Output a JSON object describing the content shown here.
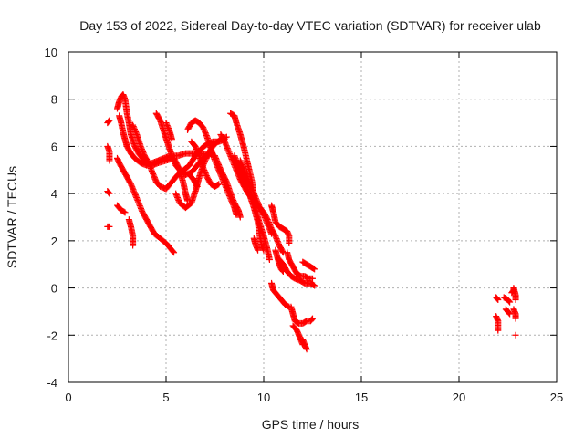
{
  "chart_data": {
    "type": "scatter",
    "title": "Day 153 of 2022, Sidereal Day-to-day VTEC variation (SDTVAR) for receiver ulab",
    "xlabel": "GPS time / hours",
    "ylabel": "SDTVAR / TECUs",
    "xlim": [
      0,
      25
    ],
    "ylim": [
      -4,
      10
    ],
    "xticks": [
      "0",
      "5",
      "10",
      "15",
      "20",
      "25"
    ],
    "yticks": [
      "-4",
      "-2",
      "0",
      "2",
      "4",
      "6",
      "8",
      "10"
    ],
    "grid": true,
    "marker": "+",
    "color": "#ff0000",
    "series": [
      {
        "name": "SDTVAR",
        "segments": [
          [
            [
              2.0,
              7.0
            ],
            [
              2.1,
              7.1
            ]
          ],
          [
            [
              2.0,
              6.0
            ],
            [
              2.1,
              5.8
            ],
            [
              2.1,
              5.4
            ]
          ],
          [
            [
              2.0,
              4.1
            ],
            [
              2.1,
              4.0
            ]
          ],
          [
            [
              2.0,
              2.6
            ],
            [
              2.1,
              2.6
            ]
          ],
          [
            [
              2.5,
              7.6
            ],
            [
              2.6,
              7.9
            ],
            [
              2.7,
              8.1
            ],
            [
              2.8,
              8.2
            ],
            [
              2.9,
              8.0
            ],
            [
              3.0,
              7.4
            ],
            [
              3.1,
              7.0
            ],
            [
              3.2,
              6.5
            ],
            [
              3.4,
              6.0
            ],
            [
              3.6,
              5.7
            ],
            [
              3.8,
              5.5
            ],
            [
              4.0,
              5.3
            ],
            [
              4.3,
              5.2
            ],
            [
              4.6,
              5.3
            ],
            [
              5.0,
              5.4
            ],
            [
              5.4,
              5.5
            ],
            [
              5.7,
              5.0
            ],
            [
              5.9,
              4.4
            ],
            [
              6.0,
              4.0
            ],
            [
              6.1,
              3.7
            ]
          ],
          [
            [
              2.6,
              7.3
            ],
            [
              2.7,
              7.0
            ],
            [
              2.8,
              6.6
            ],
            [
              2.9,
              6.3
            ],
            [
              3.0,
              6.0
            ],
            [
              3.2,
              5.7
            ],
            [
              3.4,
              5.5
            ],
            [
              3.7,
              5.3
            ],
            [
              4.0,
              5.2
            ],
            [
              4.3,
              5.3
            ],
            [
              4.6,
              5.4
            ],
            [
              4.9,
              5.5
            ],
            [
              5.2,
              5.6
            ],
            [
              5.6,
              5.6
            ],
            [
              6.0,
              5.7
            ],
            [
              6.4,
              5.7
            ],
            [
              6.8,
              5.7
            ],
            [
              7.2,
              5.6
            ]
          ],
          [
            [
              2.5,
              5.5
            ],
            [
              2.6,
              5.3
            ],
            [
              2.8,
              5.0
            ],
            [
              3.0,
              4.7
            ],
            [
              3.2,
              4.4
            ],
            [
              3.4,
              4.0
            ],
            [
              3.6,
              3.6
            ],
            [
              3.8,
              3.2
            ],
            [
              4.0,
              2.9
            ],
            [
              4.2,
              2.6
            ],
            [
              4.4,
              2.3
            ],
            [
              4.7,
              2.1
            ],
            [
              5.0,
              1.9
            ],
            [
              5.2,
              1.7
            ],
            [
              5.4,
              1.5
            ]
          ],
          [
            [
              2.5,
              3.5
            ],
            [
              2.7,
              3.3
            ],
            [
              2.9,
              3.2
            ]
          ],
          [
            [
              3.1,
              2.9
            ],
            [
              3.2,
              2.6
            ],
            [
              3.3,
              2.2
            ],
            [
              3.3,
              1.8
            ]
          ],
          [
            [
              3.3,
              6.9
            ],
            [
              3.5,
              6.5
            ],
            [
              3.7,
              6.0
            ],
            [
              3.9,
              5.6
            ],
            [
              4.1,
              5.3
            ],
            [
              4.3,
              4.9
            ],
            [
              4.5,
              4.5
            ],
            [
              4.7,
              4.3
            ],
            [
              5.0,
              4.2
            ],
            [
              5.3,
              4.5
            ],
            [
              5.6,
              4.8
            ],
            [
              5.9,
              5.0
            ],
            [
              6.2,
              5.2
            ],
            [
              6.5,
              5.6
            ],
            [
              6.8,
              5.9
            ],
            [
              7.1,
              6.1
            ],
            [
              7.4,
              6.2
            ],
            [
              7.7,
              6.2
            ],
            [
              8.0,
              6.3
            ]
          ],
          [
            [
              4.5,
              7.4
            ],
            [
              4.7,
              7.1
            ],
            [
              4.9,
              6.6
            ],
            [
              5.1,
              6.1
            ],
            [
              5.3,
              5.6
            ],
            [
              5.5,
              5.2
            ],
            [
              5.7,
              5.0
            ],
            [
              6.0,
              4.8
            ],
            [
              6.3,
              4.9
            ],
            [
              6.6,
              5.2
            ],
            [
              6.9,
              5.5
            ],
            [
              7.2,
              5.7
            ],
            [
              7.5,
              5.6
            ],
            [
              7.8,
              5.0
            ],
            [
              8.1,
              4.5
            ],
            [
              8.3,
              4.0
            ],
            [
              8.5,
              3.6
            ],
            [
              8.7,
              3.3
            ],
            [
              8.8,
              3.0
            ]
          ],
          [
            [
              5.0,
              7.0
            ],
            [
              5.2,
              6.6
            ],
            [
              5.3,
              6.3
            ]
          ],
          [
            [
              5.5,
              4.0
            ],
            [
              5.7,
              3.6
            ],
            [
              6.0,
              3.4
            ],
            [
              6.3,
              3.6
            ],
            [
              6.5,
              4.1
            ],
            [
              6.7,
              4.7
            ],
            [
              6.9,
              5.2
            ],
            [
              7.1,
              5.6
            ],
            [
              7.3,
              5.9
            ],
            [
              7.5,
              6.1
            ],
            [
              7.8,
              6.3
            ],
            [
              8.1,
              6.4
            ]
          ],
          [
            [
              6.1,
              6.7
            ],
            [
              6.3,
              7.0
            ],
            [
              6.5,
              7.1
            ],
            [
              6.7,
              7.0
            ],
            [
              6.9,
              6.8
            ],
            [
              7.1,
              6.4
            ],
            [
              7.3,
              5.9
            ],
            [
              7.5,
              5.4
            ],
            [
              7.7,
              5.0
            ],
            [
              7.9,
              4.6
            ],
            [
              8.1,
              4.2
            ],
            [
              8.3,
              3.8
            ],
            [
              8.5,
              3.4
            ],
            [
              8.6,
              3.1
            ]
          ],
          [
            [
              6.3,
              6.2
            ],
            [
              6.5,
              6.0
            ],
            [
              6.7,
              5.6
            ],
            [
              6.9,
              5.1
            ],
            [
              7.1,
              4.7
            ],
            [
              7.3,
              4.4
            ],
            [
              7.5,
              4.3
            ],
            [
              7.7,
              4.4
            ]
          ],
          [
            [
              6.2,
              4.8
            ],
            [
              6.4,
              4.6
            ],
            [
              6.6,
              4.3
            ]
          ],
          [
            [
              8.3,
              7.4
            ],
            [
              8.5,
              7.3
            ],
            [
              8.6,
              7.0
            ],
            [
              8.8,
              6.5
            ],
            [
              9.0,
              5.9
            ],
            [
              9.2,
              5.2
            ],
            [
              9.4,
              4.5
            ],
            [
              9.5,
              3.9
            ],
            [
              9.6,
              3.3
            ],
            [
              9.8,
              2.7
            ],
            [
              10.0,
              2.2
            ],
            [
              10.2,
              1.6
            ],
            [
              10.3,
              1.2
            ]
          ],
          [
            [
              7.8,
              6.5
            ],
            [
              8.0,
              6.2
            ],
            [
              8.2,
              5.8
            ],
            [
              8.4,
              5.4
            ],
            [
              8.6,
              5.0
            ],
            [
              8.8,
              4.6
            ],
            [
              9.0,
              4.3
            ],
            [
              9.2,
              4.0
            ],
            [
              9.4,
              3.8
            ],
            [
              9.6,
              3.6
            ],
            [
              9.8,
              3.4
            ],
            [
              10.0,
              3.1
            ],
            [
              10.2,
              2.7
            ],
            [
              10.4,
              2.3
            ]
          ],
          [
            [
              8.5,
              5.6
            ],
            [
              8.7,
              5.2
            ],
            [
              8.9,
              4.8
            ],
            [
              9.1,
              4.4
            ],
            [
              9.3,
              3.9
            ],
            [
              9.5,
              3.4
            ],
            [
              9.7,
              2.8
            ],
            [
              9.8,
              2.2
            ],
            [
              9.9,
              1.8
            ],
            [
              10.0,
              1.6
            ]
          ],
          [
            [
              8.8,
              5.4
            ],
            [
              9.0,
              5.0
            ],
            [
              9.2,
              4.6
            ],
            [
              9.4,
              4.2
            ],
            [
              9.6,
              3.8
            ],
            [
              9.8,
              3.4
            ],
            [
              10.0,
              3.2
            ],
            [
              10.2,
              2.9
            ],
            [
              10.4,
              2.5
            ],
            [
              10.6,
              2.2
            ],
            [
              10.8,
              1.8
            ],
            [
              11.0,
              1.5
            ]
          ],
          [
            [
              9.5,
              2.1
            ],
            [
              9.6,
              1.8
            ],
            [
              9.7,
              1.6
            ]
          ],
          [
            [
              10.4,
              3.5
            ],
            [
              10.5,
              3.2
            ],
            [
              10.6,
              2.8
            ],
            [
              10.8,
              2.6
            ],
            [
              11.0,
              2.5
            ],
            [
              11.2,
              2.4
            ],
            [
              11.3,
              2.2
            ],
            [
              11.3,
              1.9
            ]
          ],
          [
            [
              10.6,
              1.6
            ],
            [
              10.7,
              1.3
            ],
            [
              10.8,
              1.0
            ],
            [
              10.9,
              0.8
            ],
            [
              11.0,
              0.7
            ]
          ],
          [
            [
              10.7,
              1.3
            ],
            [
              11.0,
              1.0
            ],
            [
              11.2,
              0.7
            ],
            [
              11.4,
              0.5
            ],
            [
              11.6,
              0.4
            ],
            [
              11.9,
              0.3
            ],
            [
              12.1,
              0.2
            ],
            [
              12.4,
              0.2
            ],
            [
              12.6,
              0.1
            ]
          ],
          [
            [
              11.2,
              1.5
            ],
            [
              11.3,
              1.2
            ],
            [
              11.5,
              0.9
            ],
            [
              11.7,
              0.6
            ],
            [
              11.9,
              0.5
            ],
            [
              12.1,
              0.5
            ],
            [
              12.3,
              0.4
            ],
            [
              12.5,
              0.4
            ]
          ],
          [
            [
              12.0,
              1.1
            ],
            [
              12.2,
              1.0
            ],
            [
              12.4,
              0.9
            ],
            [
              12.6,
              0.8
            ]
          ],
          [
            [
              10.4,
              0.2
            ],
            [
              10.5,
              -0.1
            ],
            [
              10.7,
              -0.3
            ],
            [
              10.9,
              -0.5
            ],
            [
              11.1,
              -0.7
            ],
            [
              11.3,
              -0.8
            ]
          ],
          [
            [
              11.4,
              -0.8
            ],
            [
              11.5,
              -1.1
            ],
            [
              11.6,
              -1.4
            ],
            [
              11.8,
              -1.5
            ],
            [
              12.0,
              -1.5
            ],
            [
              12.2,
              -1.4
            ],
            [
              12.4,
              -1.4
            ],
            [
              12.5,
              -1.3
            ]
          ],
          [
            [
              11.5,
              -1.6
            ],
            [
              11.7,
              -1.8
            ],
            [
              11.8,
              -2.0
            ],
            [
              11.9,
              -2.2
            ],
            [
              12.0,
              -2.4
            ]
          ],
          [
            [
              12.0,
              -2.2
            ],
            [
              12.1,
              -2.4
            ],
            [
              12.2,
              -2.6
            ]
          ],
          [
            [
              21.9,
              -0.4
            ],
            [
              22.0,
              -0.5
            ]
          ],
          [
            [
              21.9,
              -1.2
            ],
            [
              22.0,
              -1.4
            ],
            [
              22.0,
              -1.7
            ],
            [
              22.0,
              -1.8
            ]
          ],
          [
            [
              22.3,
              -0.4
            ],
            [
              22.5,
              -0.5
            ],
            [
              22.6,
              -0.6
            ]
          ],
          [
            [
              22.4,
              -0.9
            ],
            [
              22.5,
              -1.0
            ],
            [
              22.6,
              -1.1
            ]
          ],
          [
            [
              22.7,
              -0.2
            ],
            [
              22.8,
              -0.1
            ],
            [
              22.8,
              0.0
            ],
            [
              22.9,
              -0.3
            ],
            [
              22.9,
              -0.5
            ]
          ],
          [
            [
              22.8,
              -0.9
            ],
            [
              22.9,
              -1.1
            ],
            [
              22.9,
              -1.3
            ]
          ],
          [
            [
              22.9,
              -2.0
            ]
          ]
        ]
      }
    ]
  }
}
